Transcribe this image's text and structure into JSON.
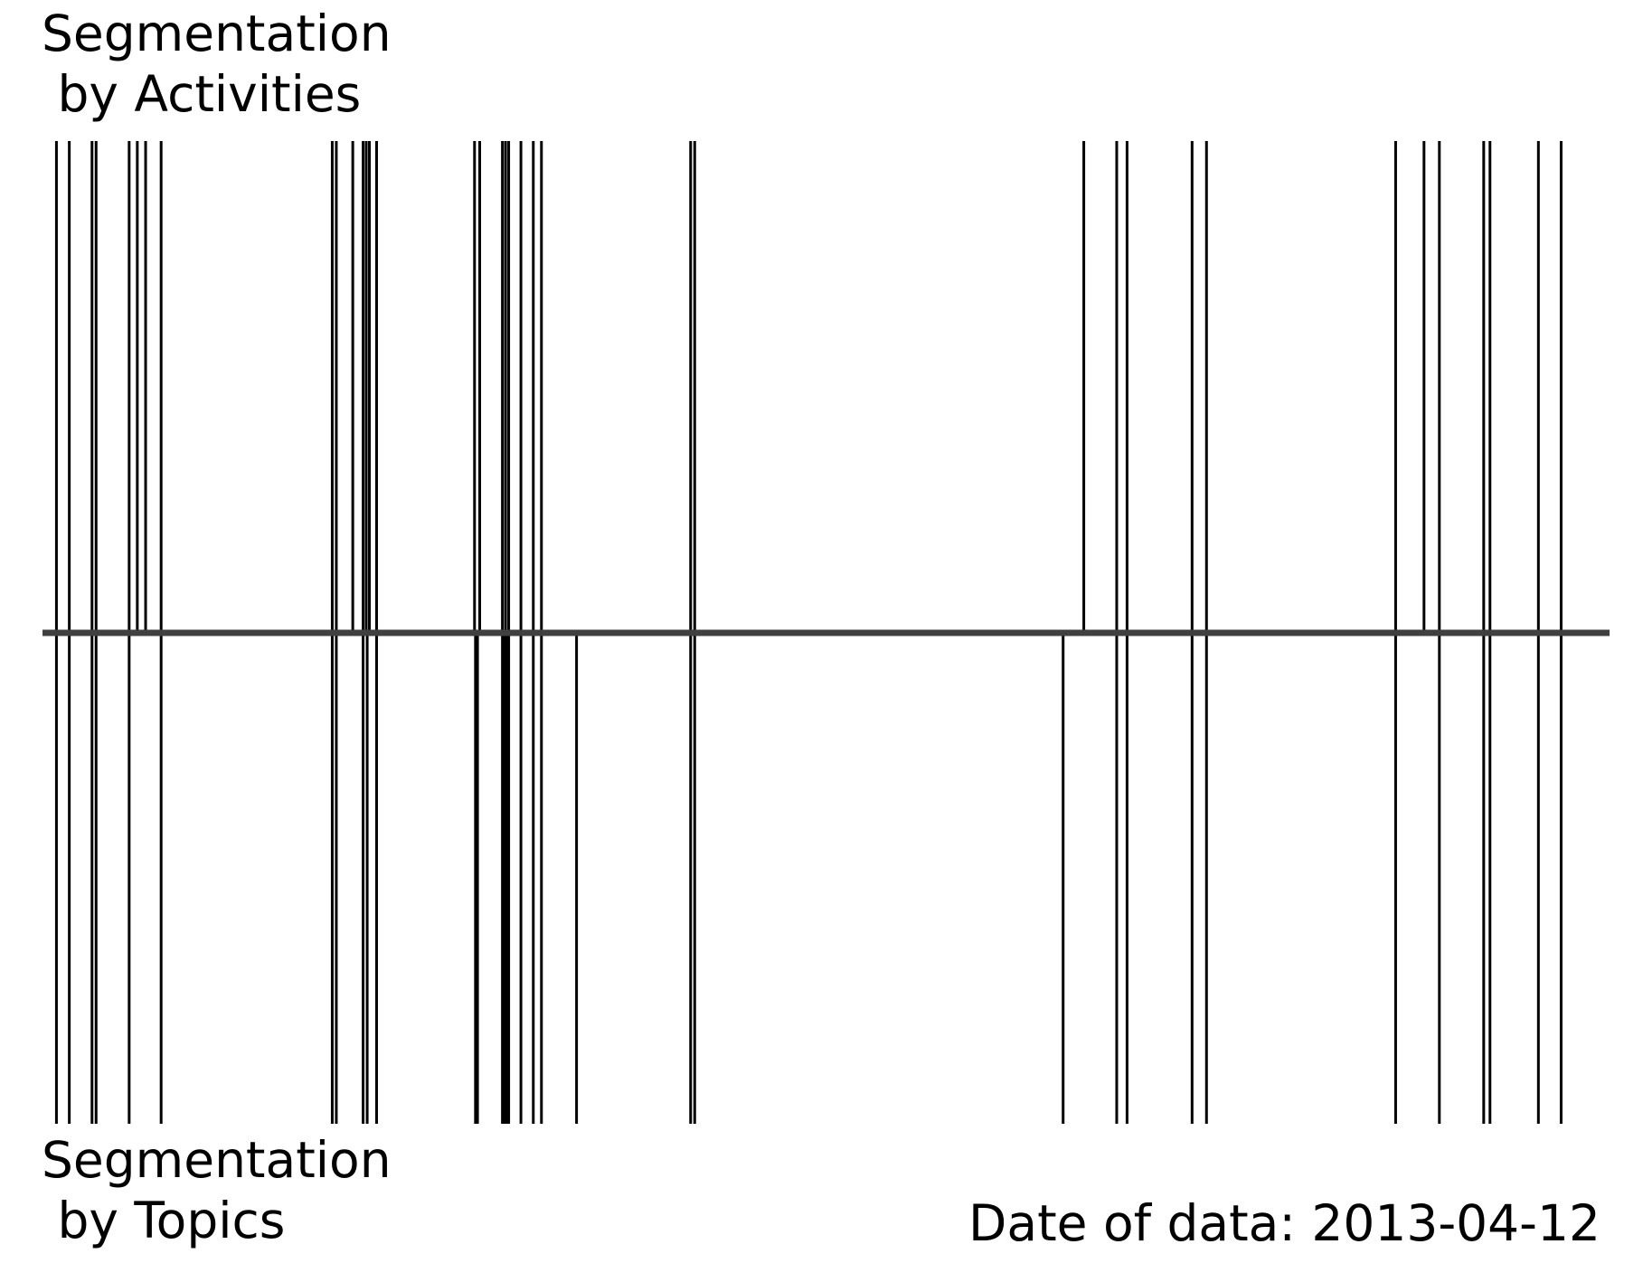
{
  "labels": {
    "top": "Segmentation\n by Activities",
    "bottom": "Segmentation\n by Topics",
    "date": "Date of data: 2013-04-12"
  },
  "chart_data": {
    "type": "event-lines",
    "title": "",
    "xlim": [
      0,
      1000
    ],
    "series": [
      {
        "name": "Segmentation by Activities",
        "position": "above",
        "x": [
          8.9,
          17.1,
          31.6,
          34.2,
          55.3,
          60.5,
          65.8,
          75.7,
          184.9,
          187.5,
          198.0,
          204.6,
          206.6,
          208.6,
          213.2,
          275.7,
          279.0,
          293.5,
          295.5,
          297.5,
          305.3,
          313.2,
          318.4,
          413.6,
          416.2,
          664.5,
          685.5,
          692.1,
          733.6,
          742.8,
          863.5,
          881.6,
          891.4,
          919.7,
          923.7,
          954.6,
          969.1
        ]
      },
      {
        "name": "Segmentation by Topics",
        "position": "below",
        "x": [
          8.9,
          17.1,
          31.6,
          34.2,
          55.3,
          75.7,
          184.9,
          187.5,
          204.6,
          207.2,
          213.2,
          276.3,
          277.6,
          293.5,
          294.8,
          296.1,
          297.5,
          305.3,
          313.2,
          318.4,
          340.8,
          413.6,
          416.2,
          651.3,
          685.5,
          692.1,
          733.6,
          742.8,
          863.5,
          891.4,
          919.7,
          923.7,
          954.6,
          969.1
        ]
      }
    ],
    "colors": {
      "events": "#000000",
      "axis": "#404040"
    }
  }
}
